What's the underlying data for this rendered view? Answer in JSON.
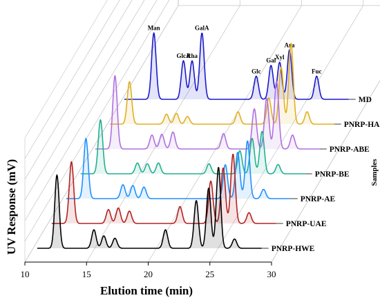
{
  "chart_data": {
    "type": "line",
    "title": "",
    "xlabel": "Elution time (min)",
    "ylabel": "UV Response (mV)",
    "zlabel": "Samples",
    "xlim": [
      10,
      30
    ],
    "xticks": [
      "10",
      "15",
      "20",
      "25",
      "30"
    ],
    "grid": true,
    "series": [
      {
        "name": "PNRP-HWE",
        "color": "#000000",
        "peaks": [
          [
            12.6,
            0.95
          ],
          [
            15.6,
            0.24
          ],
          [
            16.4,
            0.16
          ],
          [
            17.3,
            0.13
          ],
          [
            21.4,
            0.24
          ],
          [
            23.9,
            0.62
          ],
          [
            24.9,
            0.78
          ],
          [
            25.7,
            1.05
          ],
          [
            27.0,
            0.12
          ]
        ]
      },
      {
        "name": "PNRP-UAE",
        "color": "#b22222",
        "peaks": [
          [
            12.6,
            0.8
          ],
          [
            15.6,
            0.18
          ],
          [
            16.4,
            0.2
          ],
          [
            17.3,
            0.16
          ],
          [
            21.4,
            0.22
          ],
          [
            23.9,
            0.55
          ],
          [
            24.9,
            0.72
          ],
          [
            25.7,
            0.9
          ],
          [
            27.0,
            0.14
          ]
        ]
      },
      {
        "name": "PNRP-AE",
        "color": "#1e90ff",
        "peaks": [
          [
            12.6,
            0.78
          ],
          [
            15.6,
            0.18
          ],
          [
            16.4,
            0.17
          ],
          [
            17.3,
            0.15
          ],
          [
            23.9,
            0.44
          ],
          [
            24.9,
            0.6
          ],
          [
            25.7,
            0.75
          ],
          [
            27.0,
            0.12
          ]
        ]
      },
      {
        "name": "PNRP-BE",
        "color": "#20b090",
        "peaks": [
          [
            12.6,
            0.7
          ],
          [
            15.6,
            0.14
          ],
          [
            16.4,
            0.13
          ],
          [
            17.3,
            0.14
          ],
          [
            21.4,
            0.13
          ],
          [
            23.9,
            0.3
          ],
          [
            24.9,
            0.46
          ],
          [
            25.7,
            0.55
          ],
          [
            27.0,
            0.12
          ]
        ]
      },
      {
        "name": "PNRP-ABE",
        "color": "#b070e0",
        "peaks": [
          [
            12.6,
            0.95
          ],
          [
            15.6,
            0.18
          ],
          [
            16.4,
            0.19
          ],
          [
            17.3,
            0.22
          ],
          [
            21.4,
            0.2
          ],
          [
            23.9,
            0.52
          ],
          [
            24.9,
            0.66
          ],
          [
            25.7,
            0.88
          ],
          [
            27.0,
            0.18
          ]
        ]
      },
      {
        "name": "PNRP-HAE",
        "color": "#e0b020",
        "peaks": [
          [
            12.6,
            0.55
          ],
          [
            15.6,
            0.13
          ],
          [
            16.4,
            0.14
          ],
          [
            17.3,
            0.1
          ],
          [
            21.4,
            0.16
          ],
          [
            23.9,
            0.34
          ],
          [
            24.9,
            0.74
          ],
          [
            25.7,
            1.05
          ],
          [
            27.0,
            0.16
          ]
        ]
      },
      {
        "name": "MD",
        "color": "#1a1acc",
        "peaks": [
          [
            13.4,
            0.86
          ],
          [
            15.8,
            0.5
          ],
          [
            16.5,
            0.5
          ],
          [
            17.3,
            0.86
          ],
          [
            21.7,
            0.3
          ],
          [
            22.9,
            0.44
          ],
          [
            23.6,
            0.48
          ],
          [
            24.4,
            0.64
          ],
          [
            26.6,
            0.3
          ]
        ]
      }
    ],
    "peak_labels": [
      {
        "text": "Man",
        "x": 13.4
      },
      {
        "text": "GlcA",
        "x": 15.8
      },
      {
        "text": "Rha",
        "x": 16.5
      },
      {
        "text": "GalA",
        "x": 17.3
      },
      {
        "text": "Glc",
        "x": 21.7
      },
      {
        "text": "Gal",
        "x": 22.9
      },
      {
        "text": "Xyl",
        "x": 23.6
      },
      {
        "text": "Ara",
        "x": 24.4
      },
      {
        "text": "Fuc",
        "x": 26.6
      }
    ]
  }
}
